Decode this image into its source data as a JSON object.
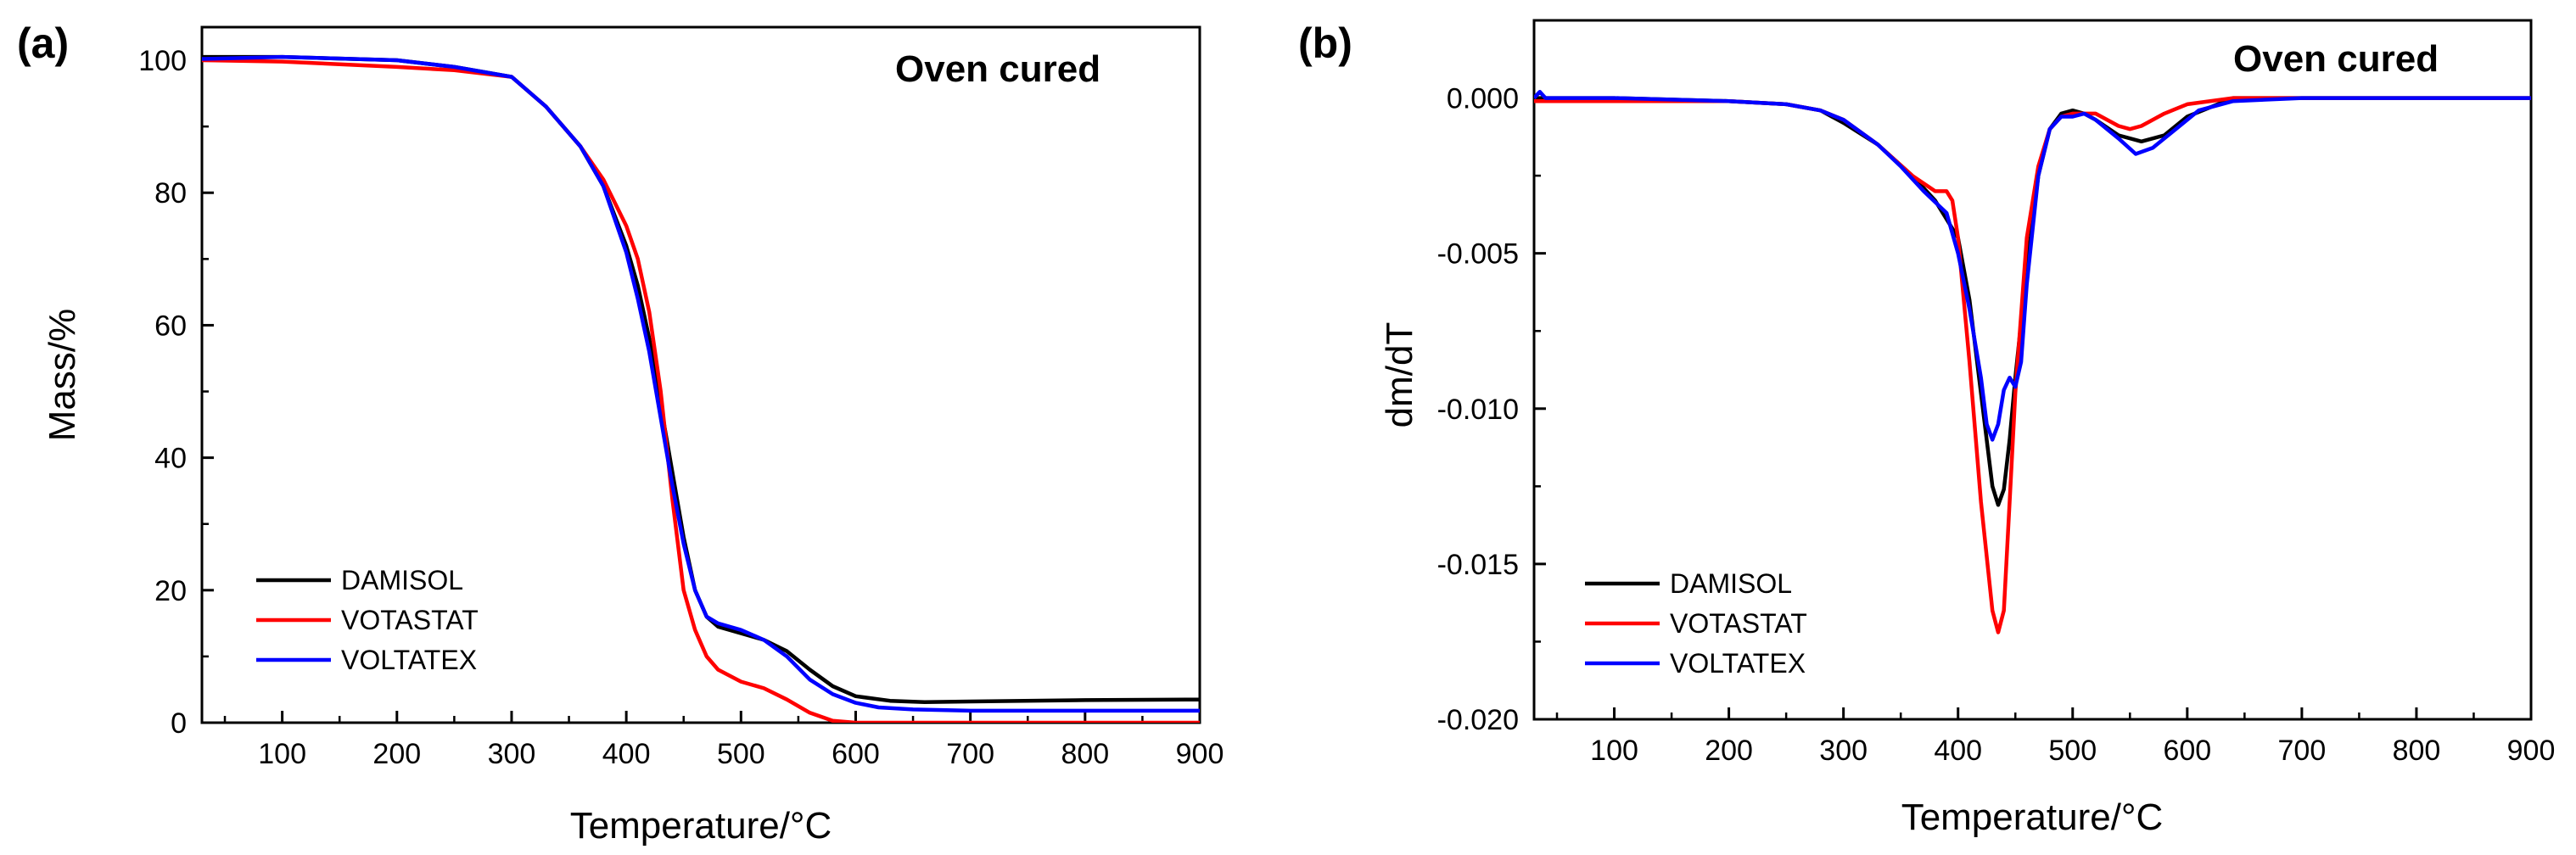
{
  "chart_data": [
    {
      "type": "line",
      "panel_label": "(a)",
      "title": "",
      "annotation": "Oven cured",
      "xlabel": "Temperature/°C",
      "ylabel": "Mass/%",
      "xlim": [
        30,
        900
      ],
      "ylim": [
        0,
        105
      ],
      "x_ticks": [
        100,
        200,
        300,
        400,
        500,
        600,
        700,
        800,
        900
      ],
      "y_ticks": [
        0,
        20,
        40,
        60,
        80,
        100
      ],
      "y_tick_labels": [
        "0",
        "20",
        "40",
        "60",
        "80",
        "100"
      ],
      "legend": "bottom-left",
      "series": [
        {
          "name": "DAMISOL",
          "color": "#000000",
          "x": [
            30,
            100,
            200,
            250,
            300,
            330,
            360,
            380,
            400,
            410,
            420,
            430,
            440,
            450,
            460,
            470,
            480,
            500,
            520,
            540,
            560,
            580,
            600,
            630,
            660,
            700,
            800,
            900
          ],
          "y": [
            100.5,
            100.5,
            100,
            99,
            97.5,
            93,
            87,
            81,
            72,
            66,
            58,
            48,
            38,
            28,
            20,
            16,
            14.5,
            13.5,
            12.5,
            10.8,
            8,
            5.5,
            4,
            3.3,
            3.1,
            3.2,
            3.4,
            3.5
          ]
        },
        {
          "name": "VOTASTAT",
          "color": "#ff0000",
          "x": [
            30,
            100,
            200,
            250,
            300,
            330,
            360,
            380,
            400,
            410,
            420,
            430,
            440,
            450,
            460,
            470,
            480,
            500,
            520,
            540,
            560,
            580,
            600,
            700,
            800,
            900
          ],
          "y": [
            100,
            99.8,
            99,
            98.5,
            97.5,
            93,
            87,
            82,
            75,
            70,
            62,
            50,
            34,
            20,
            14,
            10,
            8,
            6.2,
            5.2,
            3.5,
            1.5,
            0.3,
            0,
            0,
            0,
            0
          ]
        },
        {
          "name": "VOLTATEX",
          "color": "#0000ff",
          "x": [
            30,
            100,
            200,
            250,
            300,
            330,
            360,
            380,
            400,
            410,
            420,
            430,
            440,
            450,
            460,
            470,
            480,
            500,
            520,
            540,
            560,
            580,
            600,
            620,
            650,
            700,
            800,
            900
          ],
          "y": [
            100.2,
            100.5,
            100,
            99,
            97.5,
            93,
            87,
            81,
            71,
            64,
            56,
            46,
            36,
            27,
            20,
            16,
            15,
            14,
            12.5,
            10,
            6.5,
            4.3,
            3,
            2.3,
            2,
            1.8,
            1.8,
            1.8
          ]
        }
      ]
    },
    {
      "type": "line",
      "panel_label": "(b)",
      "title": "",
      "annotation": "Oven cured",
      "xlabel": "Temperature/°C",
      "ylabel": "dm/dT",
      "xlim": [
        30,
        900
      ],
      "ylim": [
        -0.02,
        0.0025
      ],
      "x_ticks": [
        100,
        200,
        300,
        400,
        500,
        600,
        700,
        800,
        900
      ],
      "y_ticks": [
        0,
        -0.005,
        -0.01,
        -0.015,
        -0.02
      ],
      "y_tick_labels": [
        "0.000",
        "-0.005",
        "-0.010",
        "-0.015",
        "-0.020"
      ],
      "legend": "bottom-left",
      "series": [
        {
          "name": "DAMISOL",
          "color": "#000000",
          "x": [
            30,
            100,
            200,
            250,
            280,
            300,
            330,
            360,
            380,
            400,
            410,
            420,
            430,
            435,
            440,
            445,
            450,
            460,
            470,
            480,
            490,
            500,
            510,
            520,
            540,
            560,
            580,
            600,
            640,
            700,
            800,
            900
          ],
          "y": [
            0,
            0,
            -0.0001,
            -0.0002,
            -0.0004,
            -0.0008,
            -0.0015,
            -0.0025,
            -0.0033,
            -0.0045,
            -0.0065,
            -0.0095,
            -0.0125,
            -0.0131,
            -0.0126,
            -0.011,
            -0.009,
            -0.0055,
            -0.0025,
            -0.001,
            -0.0005,
            -0.0004,
            -0.0005,
            -0.0007,
            -0.0012,
            -0.0014,
            -0.0012,
            -0.0006,
            0,
            0,
            0,
            0
          ]
        },
        {
          "name": "VOTASTAT",
          "color": "#ff0000",
          "x": [
            30,
            100,
            200,
            250,
            280,
            300,
            330,
            360,
            380,
            390,
            395,
            400,
            410,
            420,
            430,
            435,
            440,
            445,
            450,
            460,
            470,
            480,
            490,
            500,
            520,
            540,
            550,
            560,
            580,
            600,
            640,
            700,
            800,
            900
          ],
          "y": [
            -0.0001,
            -0.0001,
            -0.0001,
            -0.0002,
            -0.0004,
            -0.0007,
            -0.0015,
            -0.0025,
            -0.003,
            -0.003,
            -0.0033,
            -0.0045,
            -0.0085,
            -0.013,
            -0.0165,
            -0.0172,
            -0.0165,
            -0.013,
            -0.0095,
            -0.0045,
            -0.0022,
            -0.001,
            -0.0006,
            -0.0005,
            -0.0005,
            -0.0009,
            -0.001,
            -0.0009,
            -0.0005,
            -0.0002,
            0,
            0,
            0,
            0
          ]
        },
        {
          "name": "VOLTATEX",
          "color": "#0000ff",
          "x": [
            30,
            35,
            40,
            100,
            200,
            250,
            280,
            300,
            330,
            350,
            370,
            390,
            400,
            410,
            420,
            425,
            430,
            435,
            440,
            445,
            450,
            455,
            460,
            470,
            480,
            490,
            500,
            510,
            520,
            540,
            555,
            570,
            590,
            610,
            640,
            700,
            800,
            900
          ],
          "y": [
            0,
            0.0002,
            0,
            0,
            -0.0001,
            -0.0002,
            -0.0004,
            -0.0007,
            -0.0015,
            -0.0022,
            -0.003,
            -0.0037,
            -0.005,
            -0.0068,
            -0.009,
            -0.0105,
            -0.011,
            -0.0105,
            -0.0094,
            -0.009,
            -0.0093,
            -0.0085,
            -0.006,
            -0.0025,
            -0.001,
            -0.0006,
            -0.0006,
            -0.0005,
            -0.0007,
            -0.0013,
            -0.0018,
            -0.0016,
            -0.001,
            -0.0004,
            -0.0001,
            0,
            0,
            0
          ]
        }
      ]
    }
  ]
}
